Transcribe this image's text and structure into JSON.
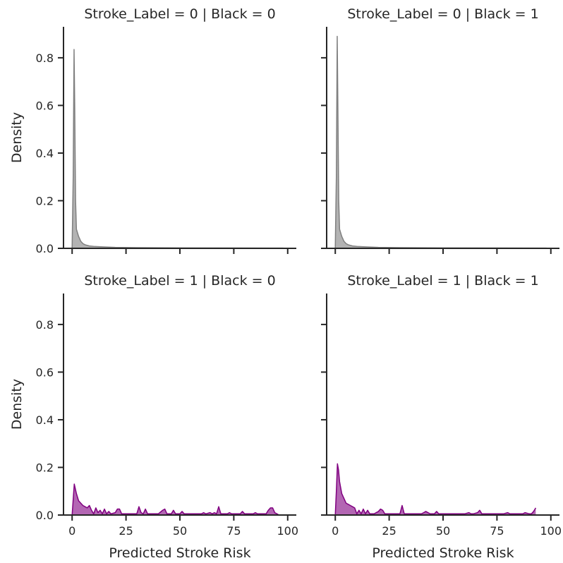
{
  "chart_data": {
    "type": "area",
    "layout": "facet-grid-2x2",
    "x_label": "Predicted Stroke Risk",
    "y_label": "Density",
    "xlim": [
      -4,
      104
    ],
    "ylim": [
      0,
      0.93
    ],
    "x_ticks": [
      0,
      25,
      50,
      75,
      100
    ],
    "y_ticks": [
      0.0,
      0.2,
      0.4,
      0.6,
      0.8
    ],
    "x_tick_labels": [
      "0",
      "25",
      "50",
      "75",
      "100"
    ],
    "y_tick_labels": [
      "0.0",
      "0.2",
      "0.4",
      "0.6",
      "0.8"
    ],
    "grid": false,
    "panels": [
      {
        "title": "Stroke_Label = 0 | Black = 0",
        "row": 0,
        "col": 0,
        "color": "#808080",
        "x": [
          0,
          0.5,
          0.9,
          1.2,
          1.6,
          2,
          3,
          4,
          5,
          6,
          8,
          10,
          15,
          20,
          30,
          50,
          75,
          98
        ],
        "y": [
          0,
          0.3,
          0.835,
          0.6,
          0.2,
          0.08,
          0.05,
          0.03,
          0.02,
          0.015,
          0.01,
          0.008,
          0.006,
          0.004,
          0.003,
          0.002,
          0.0015,
          0.001
        ]
      },
      {
        "title": "Stroke_Label = 0 | Black = 1",
        "row": 0,
        "col": 1,
        "color": "#808080",
        "x": [
          0,
          0.5,
          0.9,
          1.2,
          1.6,
          2,
          3,
          4,
          5,
          6,
          8,
          10,
          15,
          20,
          30,
          50,
          75,
          98
        ],
        "y": [
          0,
          0.3,
          0.89,
          0.6,
          0.2,
          0.08,
          0.05,
          0.03,
          0.02,
          0.015,
          0.01,
          0.008,
          0.006,
          0.004,
          0.003,
          0.002,
          0.0015,
          0.001
        ]
      },
      {
        "title": "Stroke_Label = 1 | Black = 0",
        "row": 1,
        "col": 0,
        "color": "#800080",
        "x": [
          0,
          1,
          2,
          3,
          4,
          5,
          6,
          7,
          8,
          9,
          10,
          11,
          12,
          13,
          14,
          15,
          16,
          17,
          18,
          20,
          21,
          22,
          23,
          24,
          25,
          26,
          28,
          30,
          31,
          32,
          33,
          34,
          35,
          38,
          40,
          42,
          43,
          44,
          46,
          47,
          48,
          50,
          51,
          52,
          54,
          56,
          58,
          60,
          61,
          62,
          64,
          65,
          66,
          67,
          68,
          69,
          70,
          72,
          73,
          74,
          76,
          78,
          79,
          80,
          81,
          82,
          84,
          85,
          86,
          87,
          88,
          90,
          91,
          92,
          93,
          94,
          95,
          96
        ],
        "y": [
          0,
          0.13,
          0.09,
          0.06,
          0.05,
          0.04,
          0.035,
          0.03,
          0.04,
          0.02,
          0.005,
          0.03,
          0.01,
          0.02,
          0.005,
          0.025,
          0.005,
          0.015,
          0.005,
          0.01,
          0.025,
          0.025,
          0.005,
          0.005,
          0.005,
          0.005,
          0.005,
          0.005,
          0.035,
          0.01,
          0.005,
          0.025,
          0.005,
          0.005,
          0.005,
          0.02,
          0.025,
          0.005,
          0.005,
          0.02,
          0.005,
          0.005,
          0.015,
          0.005,
          0.005,
          0.005,
          0.005,
          0.005,
          0.01,
          0.005,
          0.01,
          0.005,
          0.01,
          0.005,
          0.035,
          0.005,
          0.005,
          0.005,
          0.01,
          0.005,
          0.005,
          0.005,
          0.015,
          0.005,
          0.005,
          0.005,
          0.005,
          0.01,
          0.005,
          0.005,
          0.005,
          0.005,
          0.02,
          0.03,
          0.03,
          0.01,
          0.005,
          0.0
        ]
      },
      {
        "title": "Stroke_Label = 1 | Black = 1",
        "row": 1,
        "col": 1,
        "color": "#800080",
        "x": [
          0,
          0.5,
          1,
          1.5,
          2,
          3,
          4,
          5,
          6,
          7,
          8,
          9,
          10,
          11,
          12,
          13,
          14,
          15,
          16,
          18,
          20,
          21,
          22,
          23,
          24,
          26,
          28,
          30,
          31,
          32,
          33,
          34,
          36,
          38,
          40,
          41,
          42,
          44,
          46,
          47,
          48,
          50,
          52,
          54,
          56,
          58,
          60,
          62,
          63,
          64,
          66,
          67,
          68,
          70,
          72,
          73,
          74,
          76,
          78,
          80,
          81,
          82,
          84,
          86,
          87,
          88,
          90,
          91,
          92,
          93
        ],
        "y": [
          0,
          0.1,
          0.215,
          0.19,
          0.14,
          0.09,
          0.07,
          0.05,
          0.045,
          0.04,
          0.035,
          0.03,
          0.005,
          0.02,
          0.005,
          0.025,
          0.005,
          0.02,
          0.005,
          0.005,
          0.015,
          0.025,
          0.02,
          0.005,
          0.005,
          0.005,
          0.005,
          0.005,
          0.04,
          0.005,
          0.005,
          0.005,
          0.005,
          0.005,
          0.005,
          0.01,
          0.015,
          0.005,
          0.005,
          0.015,
          0.005,
          0.005,
          0.005,
          0.005,
          0.005,
          0.005,
          0.005,
          0.01,
          0.005,
          0.005,
          0.01,
          0.02,
          0.005,
          0.005,
          0.005,
          0.005,
          0.005,
          0.005,
          0.005,
          0.01,
          0.005,
          0.005,
          0.005,
          0.005,
          0.005,
          0.01,
          0.005,
          0.005,
          0.015,
          0.03
        ]
      }
    ]
  }
}
